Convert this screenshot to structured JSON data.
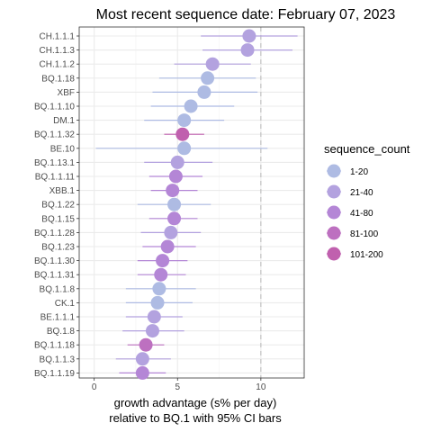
{
  "chart_data": {
    "type": "scatter",
    "title": "Most recent sequence date: February 07, 2023",
    "xlabel_lines": [
      "growth advantage (s% per day)",
      "relative to  BQ.1  with 95% CI bars"
    ],
    "ylabel": "",
    "xlim": [
      -0.9,
      12.6
    ],
    "x_ticks": [
      0,
      5,
      10
    ],
    "reference_line_x": 10,
    "grid": true,
    "legend": {
      "title": "sequence_count",
      "placement": "right",
      "items": [
        {
          "label": "1-20",
          "color": "#aebbe3"
        },
        {
          "label": "21-40",
          "color": "#b3a2df"
        },
        {
          "label": "41-80",
          "color": "#b486d6"
        },
        {
          "label": "81-100",
          "color": "#bd70c0"
        },
        {
          "label": "101-200",
          "color": "#c060ae"
        }
      ]
    },
    "points": [
      {
        "variant": "CH.1.1.1",
        "value": 9.3,
        "lo": 6.4,
        "hi": 12.2,
        "count_bin": "21-40"
      },
      {
        "variant": "CH.1.1.3",
        "value": 9.2,
        "lo": 6.5,
        "hi": 11.9,
        "count_bin": "21-40"
      },
      {
        "variant": "CH.1.1.2",
        "value": 7.1,
        "lo": 4.8,
        "hi": 9.4,
        "count_bin": "21-40"
      },
      {
        "variant": "BQ.1.18",
        "value": 6.8,
        "lo": 3.9,
        "hi": 9.7,
        "count_bin": "1-20"
      },
      {
        "variant": "XBF",
        "value": 6.6,
        "lo": 3.5,
        "hi": 9.8,
        "count_bin": "1-20"
      },
      {
        "variant": "BQ.1.1.10",
        "value": 5.8,
        "lo": 3.4,
        "hi": 8.4,
        "count_bin": "1-20"
      },
      {
        "variant": "DM.1",
        "value": 5.4,
        "lo": 3.0,
        "hi": 7.8,
        "count_bin": "1-20"
      },
      {
        "variant": "BQ.1.1.32",
        "value": 5.3,
        "lo": 4.2,
        "hi": 6.6,
        "count_bin": "101-200"
      },
      {
        "variant": "BE.10",
        "value": 5.4,
        "lo": 0.1,
        "hi": 10.4,
        "count_bin": "1-20"
      },
      {
        "variant": "BQ.1.13.1",
        "value": 5.0,
        "lo": 3.0,
        "hi": 7.1,
        "count_bin": "21-40"
      },
      {
        "variant": "BQ.1.1.11",
        "value": 4.9,
        "lo": 3.3,
        "hi": 6.5,
        "count_bin": "41-80"
      },
      {
        "variant": "XBB.1",
        "value": 4.7,
        "lo": 3.4,
        "hi": 6.2,
        "count_bin": "41-80"
      },
      {
        "variant": "BQ.1.22",
        "value": 4.8,
        "lo": 2.6,
        "hi": 7.0,
        "count_bin": "1-20"
      },
      {
        "variant": "BQ.1.15",
        "value": 4.8,
        "lo": 3.3,
        "hi": 6.2,
        "count_bin": "41-80"
      },
      {
        "variant": "BQ.1.1.28",
        "value": 4.6,
        "lo": 2.8,
        "hi": 6.4,
        "count_bin": "21-40"
      },
      {
        "variant": "BQ.1.23",
        "value": 4.4,
        "lo": 2.9,
        "hi": 6.1,
        "count_bin": "41-80"
      },
      {
        "variant": "BQ.1.1.30",
        "value": 4.1,
        "lo": 2.6,
        "hi": 5.6,
        "count_bin": "41-80"
      },
      {
        "variant": "BQ.1.1.31",
        "value": 4.0,
        "lo": 2.6,
        "hi": 5.5,
        "count_bin": "41-80"
      },
      {
        "variant": "BQ.1.1.8",
        "value": 3.9,
        "lo": 1.9,
        "hi": 6.1,
        "count_bin": "1-20"
      },
      {
        "variant": "CK.1",
        "value": 3.8,
        "lo": 1.9,
        "hi": 5.9,
        "count_bin": "1-20"
      },
      {
        "variant": "BE.1.1.1",
        "value": 3.6,
        "lo": 1.9,
        "hi": 5.3,
        "count_bin": "21-40"
      },
      {
        "variant": "BQ.1.8",
        "value": 3.5,
        "lo": 1.7,
        "hi": 5.4,
        "count_bin": "21-40"
      },
      {
        "variant": "BQ.1.1.18",
        "value": 3.1,
        "lo": 2.0,
        "hi": 4.2,
        "count_bin": "81-100"
      },
      {
        "variant": "BQ.1.1.3",
        "value": 2.9,
        "lo": 1.3,
        "hi": 4.6,
        "count_bin": "21-40"
      },
      {
        "variant": "BQ.1.1.19",
        "value": 2.9,
        "lo": 1.5,
        "hi": 4.3,
        "count_bin": "41-80"
      }
    ]
  }
}
